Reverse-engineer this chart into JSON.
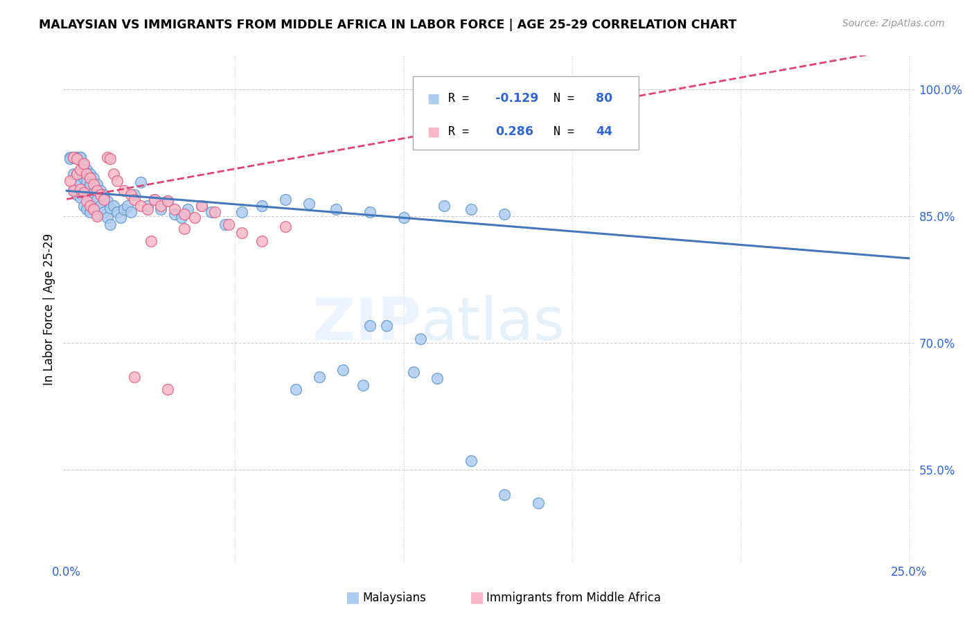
{
  "title": "MALAYSIAN VS IMMIGRANTS FROM MIDDLE AFRICA IN LABOR FORCE | AGE 25-29 CORRELATION CHART",
  "source": "Source: ZipAtlas.com",
  "ylabel": "In Labor Force | Age 25-29",
  "xlim": [
    -0.001,
    0.252
  ],
  "ylim": [
    0.44,
    1.04
  ],
  "xtick_positions": [
    0.0,
    0.05,
    0.1,
    0.15,
    0.2,
    0.25
  ],
  "xticklabels": [
    "0.0%",
    "",
    "",
    "",
    "",
    "25.0%"
  ],
  "ytick_positions": [
    0.55,
    0.7,
    0.85,
    1.0
  ],
  "yticklabels": [
    "55.0%",
    "70.0%",
    "85.0%",
    "100.0%"
  ],
  "legend_blue_r": "-0.129",
  "legend_blue_n": "80",
  "legend_pink_r": "0.286",
  "legend_pink_n": "44",
  "legend_label_blue": "Malaysians",
  "legend_label_pink": "Immigrants from Middle Africa",
  "blue_marker_color": "#aeccf0",
  "blue_edge_color": "#6699cc",
  "pink_marker_color": "#f8b8c8",
  "pink_edge_color": "#dd6688",
  "line_blue_color": "#4477bb",
  "line_pink_color": "#dd4477",
  "watermark_zip": "ZIP",
  "watermark_atlas": "atlas",
  "blue_x": [
    0.001,
    0.001,
    0.002,
    0.002,
    0.002,
    0.003,
    0.003,
    0.003,
    0.003,
    0.004,
    0.004,
    0.004,
    0.004,
    0.004,
    0.005,
    0.005,
    0.005,
    0.005,
    0.006,
    0.006,
    0.006,
    0.006,
    0.007,
    0.007,
    0.007,
    0.007,
    0.008,
    0.008,
    0.008,
    0.009,
    0.009,
    0.009,
    0.01,
    0.01,
    0.011,
    0.011,
    0.012,
    0.012,
    0.013,
    0.013,
    0.014,
    0.015,
    0.016,
    0.017,
    0.018,
    0.019,
    0.02,
    0.022,
    0.024,
    0.026,
    0.028,
    0.03,
    0.032,
    0.034,
    0.036,
    0.04,
    0.043,
    0.047,
    0.052,
    0.058,
    0.065,
    0.072,
    0.08,
    0.09,
    0.1,
    0.112,
    0.12,
    0.13,
    0.09,
    0.105,
    0.068,
    0.075,
    0.082,
    0.088,
    0.095,
    0.103,
    0.11,
    0.12,
    0.13,
    0.14
  ],
  "blue_y": [
    0.92,
    0.918,
    0.92,
    0.9,
    0.88,
    0.92,
    0.918,
    0.9,
    0.875,
    0.92,
    0.92,
    0.905,
    0.888,
    0.872,
    0.91,
    0.895,
    0.878,
    0.862,
    0.905,
    0.892,
    0.875,
    0.858,
    0.9,
    0.888,
    0.872,
    0.855,
    0.895,
    0.878,
    0.86,
    0.888,
    0.87,
    0.852,
    0.88,
    0.862,
    0.875,
    0.855,
    0.868,
    0.848,
    0.86,
    0.84,
    0.862,
    0.855,
    0.848,
    0.858,
    0.862,
    0.855,
    0.875,
    0.89,
    0.862,
    0.87,
    0.858,
    0.868,
    0.852,
    0.848,
    0.858,
    0.862,
    0.855,
    0.84,
    0.855,
    0.862,
    0.87,
    0.865,
    0.858,
    0.855,
    0.848,
    0.862,
    0.858,
    0.852,
    0.72,
    0.705,
    0.645,
    0.66,
    0.668,
    0.65,
    0.72,
    0.665,
    0.658,
    0.56,
    0.52,
    0.51
  ],
  "pink_x": [
    0.001,
    0.002,
    0.002,
    0.003,
    0.003,
    0.004,
    0.004,
    0.005,
    0.005,
    0.006,
    0.006,
    0.007,
    0.007,
    0.008,
    0.008,
    0.009,
    0.009,
    0.01,
    0.011,
    0.012,
    0.013,
    0.014,
    0.015,
    0.017,
    0.019,
    0.02,
    0.022,
    0.024,
    0.026,
    0.028,
    0.03,
    0.032,
    0.035,
    0.038,
    0.04,
    0.044,
    0.048,
    0.052,
    0.058,
    0.065,
    0.02,
    0.025,
    0.03,
    0.035
  ],
  "pink_y": [
    0.892,
    0.92,
    0.88,
    0.918,
    0.9,
    0.905,
    0.882,
    0.912,
    0.878,
    0.9,
    0.868,
    0.895,
    0.862,
    0.888,
    0.858,
    0.88,
    0.85,
    0.875,
    0.87,
    0.92,
    0.918,
    0.9,
    0.892,
    0.88,
    0.875,
    0.87,
    0.862,
    0.858,
    0.87,
    0.862,
    0.868,
    0.858,
    0.852,
    0.848,
    0.862,
    0.855,
    0.84,
    0.83,
    0.82,
    0.838,
    0.66,
    0.82,
    0.645,
    0.835
  ]
}
